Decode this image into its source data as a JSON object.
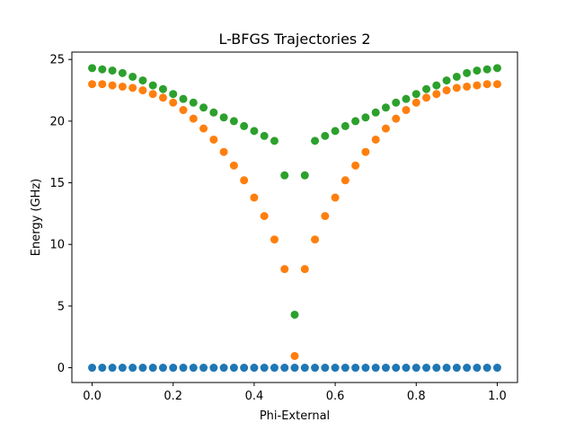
{
  "chart_data": {
    "type": "scatter",
    "title": "L-BFGS Trajectories 2",
    "xlabel": "Phi-External",
    "ylabel": "Energy (GHz)",
    "xlim": [
      -0.05,
      1.05
    ],
    "ylim": [
      -1.2,
      25.6
    ],
    "xticks": [
      0.0,
      0.2,
      0.4,
      0.6,
      0.8,
      1.0
    ],
    "xtick_labels": [
      "0.0",
      "0.2",
      "0.4",
      "0.6",
      "0.8",
      "1.0"
    ],
    "yticks": [
      0,
      5,
      10,
      15,
      20,
      25
    ],
    "ytick_labels": [
      "0",
      "5",
      "10",
      "15",
      "20",
      "25"
    ],
    "grid": false,
    "x": [
      0.0,
      0.025,
      0.05,
      0.075,
      0.1,
      0.125,
      0.15,
      0.175,
      0.2,
      0.225,
      0.25,
      0.275,
      0.3,
      0.325,
      0.35,
      0.375,
      0.4,
      0.425,
      0.45,
      0.475,
      0.5,
      0.525,
      0.55,
      0.575,
      0.6,
      0.625,
      0.65,
      0.675,
      0.7,
      0.725,
      0.75,
      0.775,
      0.8,
      0.825,
      0.85,
      0.875,
      0.9,
      0.925,
      0.95,
      0.975,
      1.0
    ],
    "series": [
      {
        "color": "#1f77b4",
        "values": [
          0.0,
          0.0,
          0.0,
          0.0,
          0.0,
          0.0,
          0.0,
          0.0,
          0.0,
          0.0,
          0.0,
          0.0,
          0.0,
          0.0,
          0.0,
          0.0,
          0.0,
          0.0,
          0.0,
          0.0,
          0.0,
          0.0,
          0.0,
          0.0,
          0.0,
          0.0,
          0.0,
          0.0,
          0.0,
          0.0,
          0.0,
          0.0,
          0.0,
          0.0,
          0.0,
          0.0,
          0.0,
          0.0,
          0.0,
          0.0,
          0.0
        ]
      },
      {
        "color": "#ff7f0e",
        "values": [
          23.0,
          23.0,
          22.9,
          22.8,
          22.7,
          22.5,
          22.2,
          21.9,
          21.5,
          20.9,
          20.2,
          19.4,
          18.5,
          17.5,
          16.4,
          15.2,
          13.8,
          12.3,
          10.4,
          8.0,
          0.95,
          8.0,
          10.4,
          12.3,
          13.8,
          15.2,
          16.4,
          17.5,
          18.5,
          19.4,
          20.2,
          20.9,
          21.5,
          21.9,
          22.2,
          22.5,
          22.7,
          22.8,
          22.9,
          23.0,
          23.0
        ]
      },
      {
        "color": "#2ca02c",
        "values": [
          24.3,
          24.2,
          24.1,
          23.9,
          23.6,
          23.3,
          22.9,
          22.6,
          22.2,
          21.8,
          21.5,
          21.1,
          20.7,
          20.3,
          20.0,
          19.6,
          19.2,
          18.8,
          18.4,
          15.6,
          4.3,
          15.6,
          18.4,
          18.8,
          19.2,
          19.6,
          20.0,
          20.3,
          20.7,
          21.1,
          21.5,
          21.8,
          22.2,
          22.6,
          22.9,
          23.3,
          23.6,
          23.9,
          24.1,
          24.2,
          24.3
        ]
      }
    ]
  }
}
